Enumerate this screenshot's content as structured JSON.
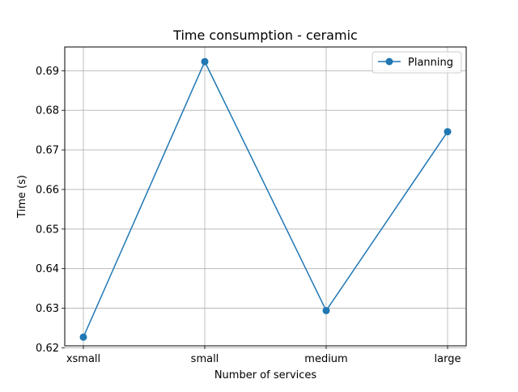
{
  "chart_data": {
    "type": "line",
    "title": "Time consumption - ceramic",
    "xlabel": "Number of services",
    "ylabel": "Time (s)",
    "categories": [
      "xsmall",
      "small",
      "medium",
      "large"
    ],
    "ylim": [
      0.6205,
      0.696
    ],
    "yticks": [
      0.62,
      0.63,
      0.64,
      0.65,
      0.66,
      0.67,
      0.68,
      0.69
    ],
    "ytick_labels": [
      "0.62",
      "0.63",
      "0.64",
      "0.65",
      "0.66",
      "0.67",
      "0.68",
      "0.69"
    ],
    "grid": true,
    "legend_position": "top-right",
    "series": [
      {
        "name": "Planning",
        "color": "#1f77b4",
        "marker": "circle",
        "values": [
          0.6227,
          0.6923,
          0.6294,
          0.6746
        ]
      }
    ]
  }
}
